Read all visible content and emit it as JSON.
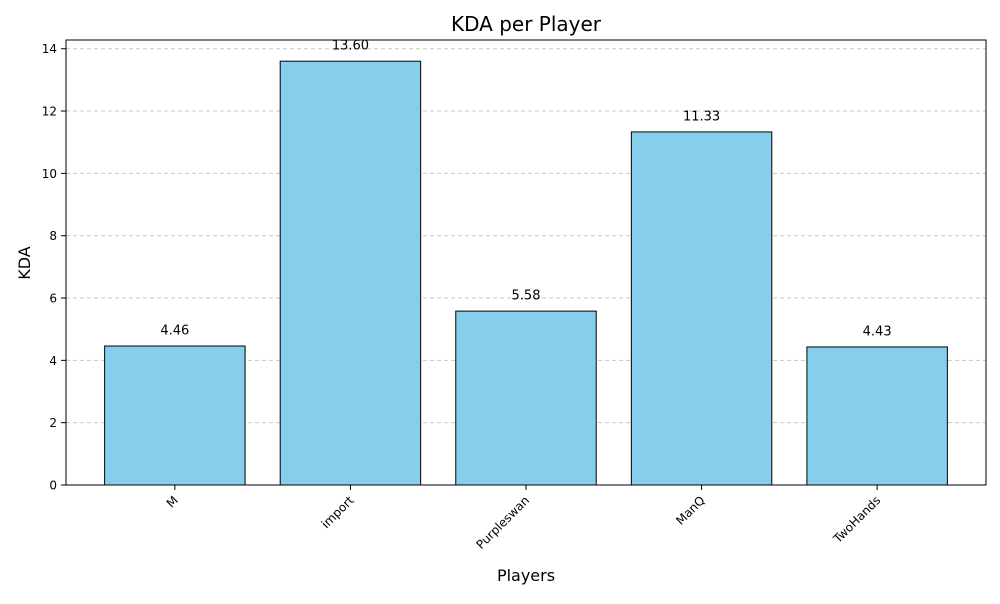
{
  "chart_data": {
    "type": "bar",
    "title": "KDA per Player",
    "xlabel": "Players",
    "ylabel": "KDA",
    "categories": [
      "M",
      "import",
      "Purpleswan",
      "ManQ",
      "TwoHands"
    ],
    "values": [
      4.46,
      13.6,
      5.58,
      11.33,
      4.43
    ],
    "value_labels": [
      "4.46",
      "13.60",
      "5.58",
      "11.33",
      "4.43"
    ],
    "ylim": [
      0,
      14.28
    ],
    "yticks": [
      0,
      2,
      4,
      6,
      8,
      10,
      12,
      14
    ],
    "grid": "y-dashed",
    "bar_color": "#87ceeb",
    "bar_edge_color": "#000000",
    "grid_color": "#c8c8c8",
    "xtick_rotation": 45
  }
}
